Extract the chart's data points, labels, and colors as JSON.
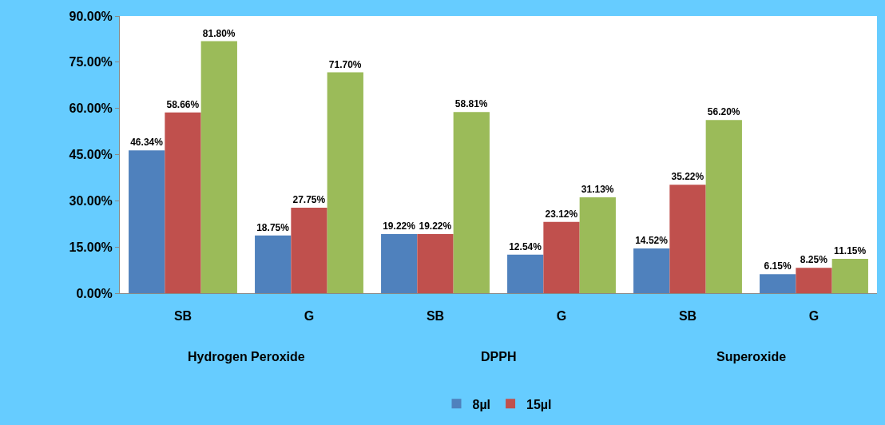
{
  "chart_data": {
    "type": "bar",
    "categories": [
      "SB",
      "G",
      "SB",
      "G",
      "SB",
      "G"
    ],
    "annotations": [
      "Hydrogen Peroxide",
      "DPPH",
      "Superoxide"
    ],
    "series": [
      {
        "name": "8µl",
        "color": "#4f81bd",
        "values": [
          46.34,
          18.75,
          19.22,
          12.54,
          14.52,
          6.15
        ],
        "value_labels": [
          "46.34%",
          "18.75%",
          "19.22%",
          "12.54%",
          "14.52%",
          "6.15%"
        ]
      },
      {
        "name": "15µl",
        "color": "#c0504d",
        "values": [
          58.66,
          27.75,
          19.22,
          23.12,
          35.22,
          8.25
        ],
        "value_labels": [
          "58.66%",
          "27.75%",
          "19.22%",
          "23.12%",
          "35.22%",
          "8.25%"
        ]
      },
      {
        "color": "#9bbb59",
        "values": [
          81.8,
          71.7,
          58.81,
          31.13,
          56.2,
          11.15
        ],
        "value_labels": [
          "81.80%",
          "71.70%",
          "58.81%",
          "31.13%",
          "56.20%",
          "11.15%"
        ]
      }
    ],
    "ylim": [
      0,
      90
    ],
    "yticks": [
      {
        "value": 0,
        "label": "0.00%"
      },
      {
        "value": 15,
        "label": "15.00%"
      },
      {
        "value": 30,
        "label": "30.00%"
      },
      {
        "value": 45,
        "label": "45.00%"
      },
      {
        "value": 60,
        "label": "60.00%"
      },
      {
        "value": 75,
        "label": "75.00%"
      },
      {
        "value": 90,
        "label": "90.00%"
      }
    ],
    "grid": false,
    "legend": "bottom"
  }
}
